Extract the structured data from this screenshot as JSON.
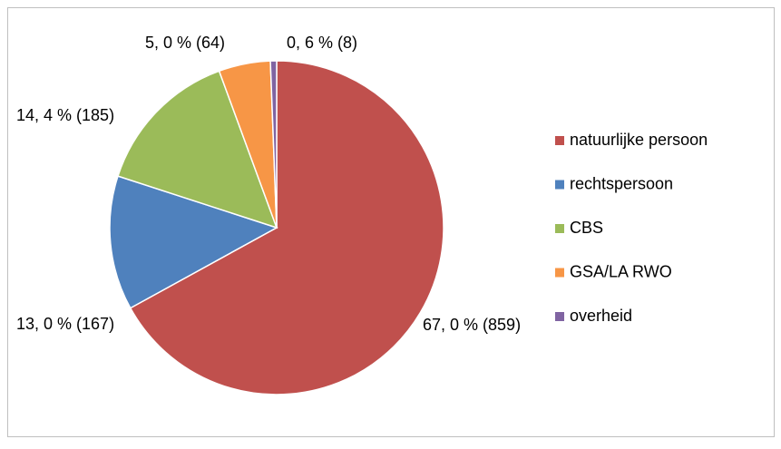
{
  "chart_data": {
    "type": "pie",
    "categories": [
      "natuurlijke persoon",
      "rechtspersoon",
      "CBS",
      "GSA/LA RWO",
      "overheid"
    ],
    "values": [
      67.0,
      13.0,
      14.4,
      5.0,
      0.6
    ],
    "value_labels": [
      "67, 0 % (859)",
      "13, 0 % (167)",
      "14, 4 % (185)",
      "5, 0 % (64)",
      "0, 6 % (8)"
    ],
    "colors": [
      "#c0504d",
      "#4f81bd",
      "#9bbb59",
      "#f79646",
      "#8064a2"
    ],
    "legend": "right"
  }
}
